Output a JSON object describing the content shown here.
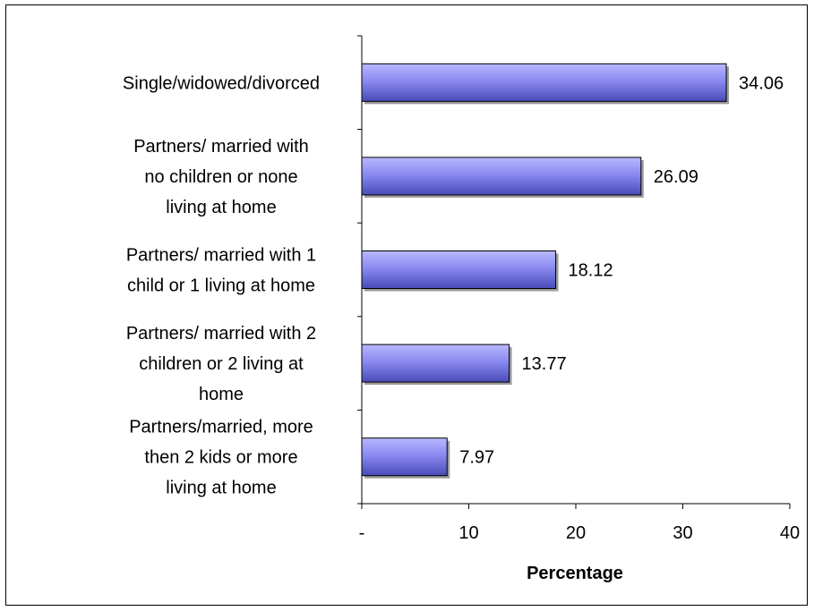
{
  "chart_data": {
    "type": "bar",
    "orientation": "horizontal",
    "title": "",
    "xlabel": "Percentage",
    "ylabel": "",
    "xlim": [
      0,
      40
    ],
    "x_ticks": [
      {
        "value": 0,
        "label": "-"
      },
      {
        "value": 10,
        "label": "10"
      },
      {
        "value": 20,
        "label": "20"
      },
      {
        "value": 30,
        "label": "30"
      },
      {
        "value": 40,
        "label": "40"
      }
    ],
    "grid": false,
    "legend": "none",
    "categories": [
      "Single/widowed/divorced",
      "Partners/ married with no children or none living at home",
      "Partners/ married with 1 child or 1 living at home",
      "Partners/ married with 2 children or 2 living at home",
      "Partners/married, more then 2 kids or more living at home"
    ],
    "category_lines": [
      [
        "Single/widowed/divorced"
      ],
      [
        "Partners/ married with",
        "no children or none",
        "living at home"
      ],
      [
        "Partners/ married with 1",
        "child or 1 living at home"
      ],
      [
        "Partners/ married with 2",
        "children or 2 living at",
        "home"
      ],
      [
        "Partners/married, more",
        "then 2 kids or more",
        "living at home"
      ]
    ],
    "values": [
      34.06,
      26.09,
      18.12,
      13.77,
      7.97
    ],
    "value_labels": [
      "34.06",
      "26.09",
      "18.12",
      "13.77",
      "7.97"
    ],
    "bar_color": "#8A8AF0"
  }
}
